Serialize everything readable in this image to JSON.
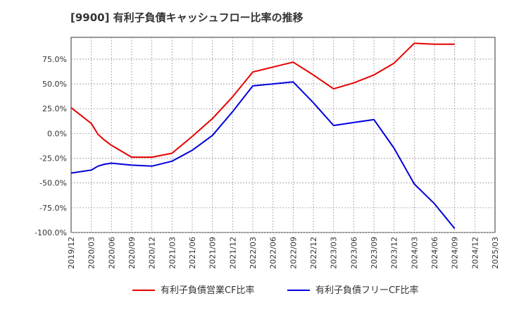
{
  "chart_data": {
    "type": "line",
    "title": "[9900]  有利子負債キャッシュフロー比率の推移",
    "xlabel": "",
    "ylabel": "",
    "x_ticks": [
      "2019/12",
      "2020/03",
      "2020/06",
      "2020/09",
      "2020/12",
      "2021/03",
      "2021/06",
      "2021/09",
      "2021/12",
      "2022/03",
      "2022/06",
      "2022/09",
      "2022/12",
      "2023/03",
      "2023/06",
      "2023/09",
      "2023/12",
      "2024/03",
      "2024/06",
      "2024/09",
      "2024/12",
      "2025/03"
    ],
    "y_ticks": [
      75,
      50,
      25,
      0,
      -25,
      -50,
      -75,
      -100
    ],
    "y_tick_labels": [
      "75.0%",
      "50.0%",
      "25.0%",
      "0.0%",
      "-25.0%",
      "-50.0%",
      "-75.0%",
      "-100.0%"
    ],
    "ylim": [
      -100,
      97
    ],
    "grid": true,
    "legend_position": "bottom",
    "series": [
      {
        "name": "有利子負債営業CF比率",
        "color": "#e60000",
        "points": [
          [
            "2019/12",
            26
          ],
          [
            "2020/03",
            10
          ],
          [
            "2020/04",
            -1
          ],
          [
            "2020/05",
            -7
          ],
          [
            "2020/06",
            -12
          ],
          [
            "2020/07",
            -16
          ],
          [
            "2020/08",
            -20
          ],
          [
            "2020/09",
            -24
          ],
          [
            "2020/12",
            -24
          ],
          [
            "2021/03",
            -20
          ],
          [
            "2021/06",
            -3
          ],
          [
            "2021/09",
            15
          ],
          [
            "2021/12",
            37
          ],
          [
            "2022/03",
            62
          ],
          [
            "2022/06",
            67
          ],
          [
            "2022/09",
            72
          ],
          [
            "2022/12",
            59
          ],
          [
            "2023/03",
            45
          ],
          [
            "2023/06",
            51
          ],
          [
            "2023/09",
            59
          ],
          [
            "2023/12",
            71
          ],
          [
            "2024/03",
            91
          ],
          [
            "2024/06",
            90
          ],
          [
            "2024/09",
            90
          ]
        ]
      },
      {
        "name": "有利子負債フリーCF比率",
        "color": "#0000dd",
        "points": [
          [
            "2019/12",
            -40
          ],
          [
            "2020/03",
            -37
          ],
          [
            "2020/04",
            -33
          ],
          [
            "2020/05",
            -31
          ],
          [
            "2020/06",
            -30
          ],
          [
            "2020/09",
            -32
          ],
          [
            "2020/12",
            -33
          ],
          [
            "2021/03",
            -28
          ],
          [
            "2021/06",
            -17
          ],
          [
            "2021/09",
            -2
          ],
          [
            "2021/12",
            22
          ],
          [
            "2022/03",
            48
          ],
          [
            "2022/06",
            50
          ],
          [
            "2022/09",
            52
          ],
          [
            "2022/12",
            31
          ],
          [
            "2023/03",
            8
          ],
          [
            "2023/06",
            11
          ],
          [
            "2023/09",
            14
          ],
          [
            "2023/12",
            -15
          ],
          [
            "2024/03",
            -51
          ],
          [
            "2024/06",
            -71
          ],
          [
            "2024/09",
            -96
          ]
        ]
      }
    ]
  }
}
